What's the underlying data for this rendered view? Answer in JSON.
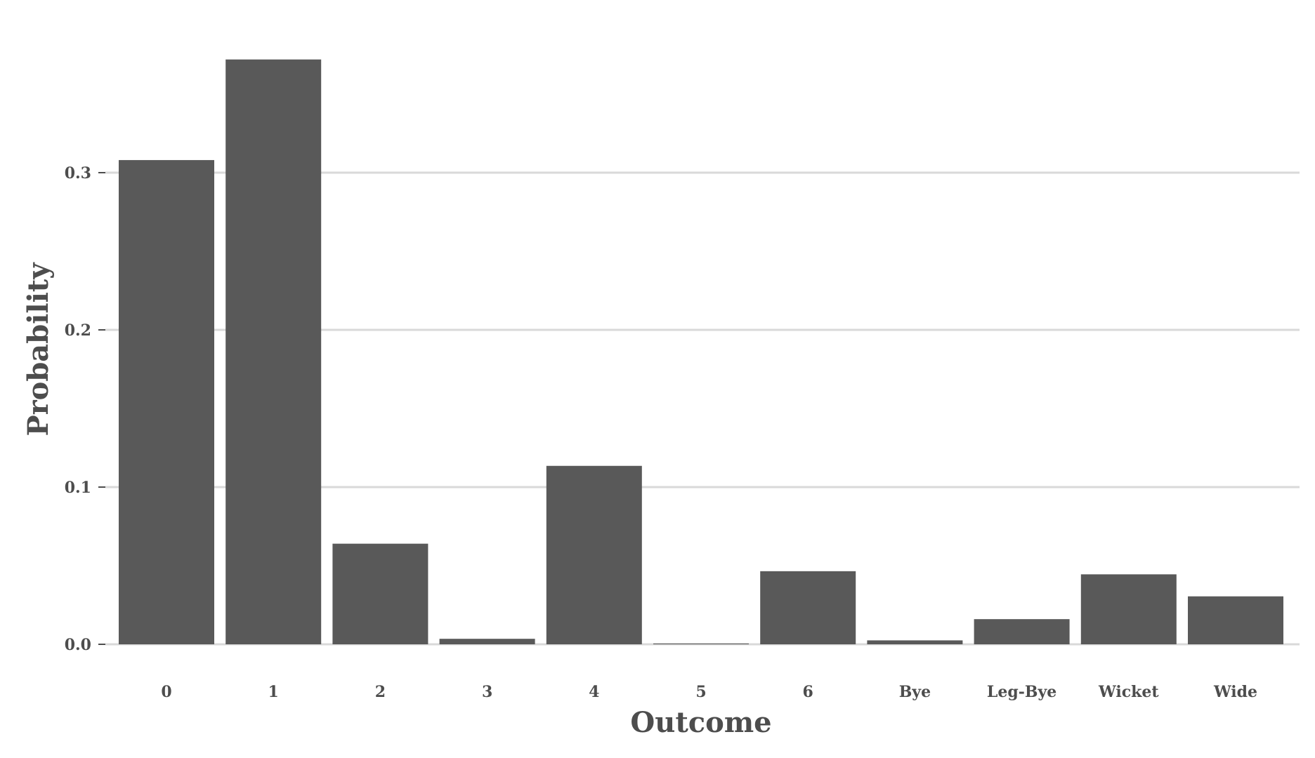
{
  "chart_data": {
    "type": "bar",
    "categories": [
      "0",
      "1",
      "2",
      "3",
      "4",
      "5",
      "6",
      "Bye",
      "Leg-Bye",
      "Wicket",
      "Wide"
    ],
    "values": [
      0.308,
      0.372,
      0.064,
      0.0035,
      0.1135,
      0.0005,
      0.0465,
      0.0025,
      0.016,
      0.0445,
      0.0305
    ],
    "xlabel": "Outcome",
    "ylabel": "Probability",
    "ylim": [
      0,
      0.375
    ],
    "yticks": [
      0.0,
      0.1,
      0.2,
      0.3
    ],
    "ytick_labels": [
      "0.0",
      "0.1",
      "0.2",
      "0.3"
    ],
    "grid": true,
    "bar_color": "#595959",
    "grid_color": "#d9d9d9"
  }
}
